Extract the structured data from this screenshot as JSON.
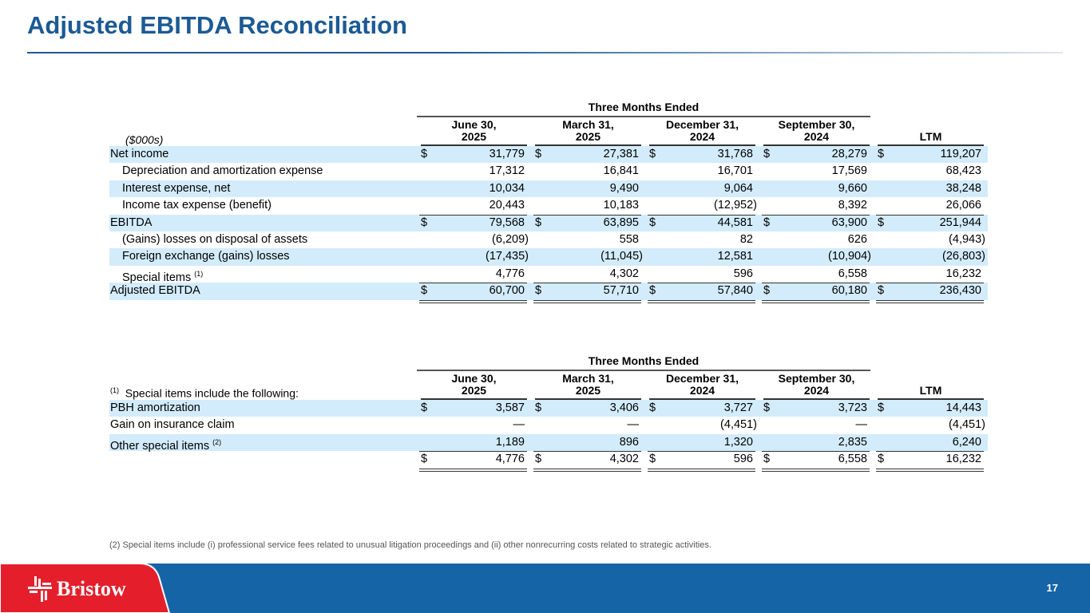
{
  "title": "Adjusted EBITDA Reconciliation",
  "colors": {
    "title": "#1b5a94",
    "row_shade": "#d3ecfb",
    "footer_blue": "#1565a6",
    "footer_red": "#e41f2b"
  },
  "table1": {
    "group_header": "Three Months Ended",
    "unit_label": "($000s)",
    "columns": [
      [
        "June 30,",
        "2025"
      ],
      [
        "March 31,",
        "2025"
      ],
      [
        "December 31,",
        "2024"
      ],
      [
        "September 30,",
        "2024"
      ],
      [
        "",
        "LTM"
      ]
    ],
    "rows": [
      {
        "label": "Net income",
        "indent": false,
        "shade": true,
        "dollar": true,
        "values": [
          "31,779",
          "27,381",
          "31,768",
          "28,279",
          "119,207"
        ]
      },
      {
        "label": "Depreciation and amortization expense",
        "indent": true,
        "shade": false,
        "values": [
          "17,312",
          "16,841",
          "16,701",
          "17,569",
          "68,423"
        ]
      },
      {
        "label": "Interest expense, net",
        "indent": true,
        "shade": true,
        "values": [
          "10,034",
          "9,490",
          "9,064",
          "9,660",
          "38,248"
        ]
      },
      {
        "label": "Income tax expense (benefit)",
        "indent": true,
        "shade": false,
        "values": [
          "20,443",
          "10,183",
          "(12,952)",
          "8,392",
          "26,066"
        ]
      },
      {
        "label": "EBITDA",
        "indent": false,
        "shade": true,
        "dollar": true,
        "top": true,
        "values": [
          "79,568",
          "63,895",
          "44,581",
          "63,900",
          "251,944"
        ]
      },
      {
        "label": "(Gains) losses on disposal of assets",
        "indent": true,
        "shade": false,
        "values": [
          "(6,209)",
          "558",
          "82",
          "626",
          "(4,943)"
        ]
      },
      {
        "label": "Foreign exchange (gains) losses",
        "indent": true,
        "shade": true,
        "values": [
          "(17,435)",
          "(11,045)",
          "12,581",
          "(10,904)",
          "(26,803)"
        ]
      },
      {
        "label": "Special items",
        "sup": "(1)",
        "indent": true,
        "shade": false,
        "values": [
          "4,776",
          "4,302",
          "596",
          "6,558",
          "16,232"
        ]
      },
      {
        "label": "Adjusted EBITDA",
        "indent": false,
        "shade": true,
        "dollar": true,
        "top": true,
        "dbl": true,
        "values": [
          "60,700",
          "57,710",
          "57,840",
          "60,180",
          "236,430"
        ]
      }
    ]
  },
  "table2": {
    "group_header": "Three Months Ended",
    "unit_label_sup": "(1)",
    "unit_label": "Special items include the following:",
    "columns": [
      [
        "June 30,",
        "2025"
      ],
      [
        "March 31,",
        "2025"
      ],
      [
        "December 31,",
        "2024"
      ],
      [
        "September 30,",
        "2024"
      ],
      [
        "",
        "LTM"
      ]
    ],
    "rows": [
      {
        "label": "PBH amortization",
        "shade": true,
        "dollar": true,
        "values": [
          "3,587",
          "3,406",
          "3,727",
          "3,723",
          "14,443"
        ]
      },
      {
        "label": "Gain on insurance claim",
        "shade": false,
        "values": [
          "—",
          "—",
          "(4,451)",
          "—",
          "(4,451)"
        ]
      },
      {
        "label": "Other special items",
        "sup": "(2)",
        "shade": true,
        "values": [
          "1,189",
          "896",
          "1,320",
          "2,835",
          "6,240"
        ]
      },
      {
        "label": "",
        "shade": false,
        "dollar": true,
        "top": true,
        "dbl": true,
        "values": [
          "4,776",
          "4,302",
          "596",
          "6,558",
          "16,232"
        ]
      }
    ]
  },
  "dollar_sign": "$",
  "footnote": "(2) Special items include (i) professional service fees related to unusual litigation proceedings and (ii) other nonrecurring costs related to strategic activities.",
  "logo_text": "Bristow",
  "page_number": "17"
}
